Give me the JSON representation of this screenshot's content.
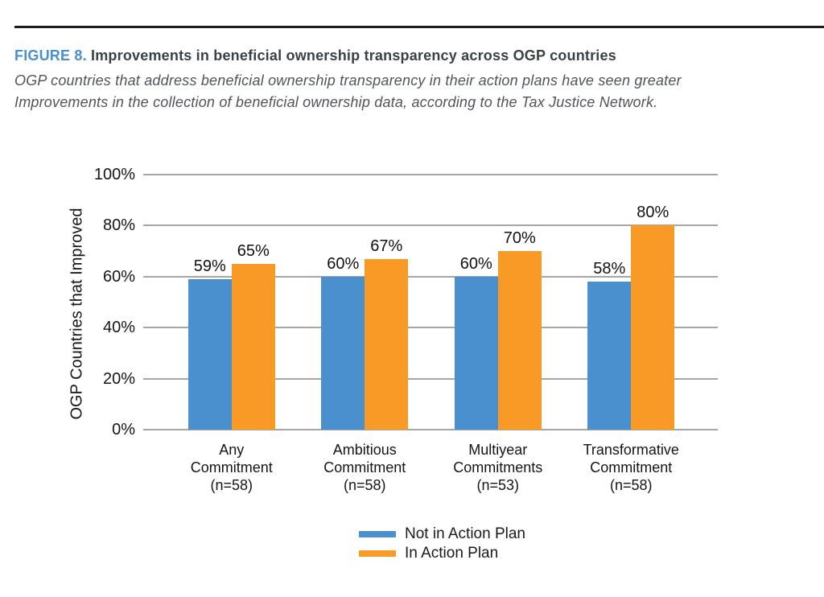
{
  "header": {
    "figure_label": "FIGURE 8.",
    "title": "Improvements in beneficial ownership transparency across OGP countries",
    "subtitle_lines": [
      "OGP countries that address beneficial ownership transparency in their action plans have seen greater",
      "Improvements in the collection of beneficial ownership data, according to the Tax Justice Network."
    ]
  },
  "chart_data": {
    "type": "bar",
    "title": "Improvements in beneficial ownership transparency across OGP countries",
    "xlabel": "",
    "ylabel": "OGP Countries that Improved",
    "ylim": [
      0,
      100
    ],
    "ytick_values": [
      0,
      20,
      40,
      60,
      80,
      100
    ],
    "ytick_labels": [
      "0%",
      "20%",
      "40%",
      "60%",
      "80%",
      "100%"
    ],
    "grid": true,
    "legend_position": "bottom",
    "value_suffix": "%",
    "categories": [
      [
        "Any",
        "Commitment",
        "(n=58)"
      ],
      [
        "Ambitious",
        "Commitment",
        "(n=58)"
      ],
      [
        "Multiyear",
        "Commitments",
        "(n=53)"
      ],
      [
        "Transformative",
        "Commitment",
        "(n=58)"
      ]
    ],
    "series": [
      {
        "name": "Not in Action Plan",
        "color": "#4A90CE",
        "values": [
          59,
          60,
          60,
          58
        ]
      },
      {
        "name": "In Action Plan",
        "color": "#F89A25",
        "values": [
          65,
          67,
          70,
          80
        ]
      }
    ]
  },
  "colors": {
    "figure_label_blue": "#4A8FD2",
    "heading_dark": "#3A4147",
    "subtitle_gray": "#50545B",
    "gridline_gray": "#A6A6A6",
    "rule_black": "#1A1C1E",
    "bar_blue": "#4A90CE",
    "bar_orange": "#F89A25"
  }
}
